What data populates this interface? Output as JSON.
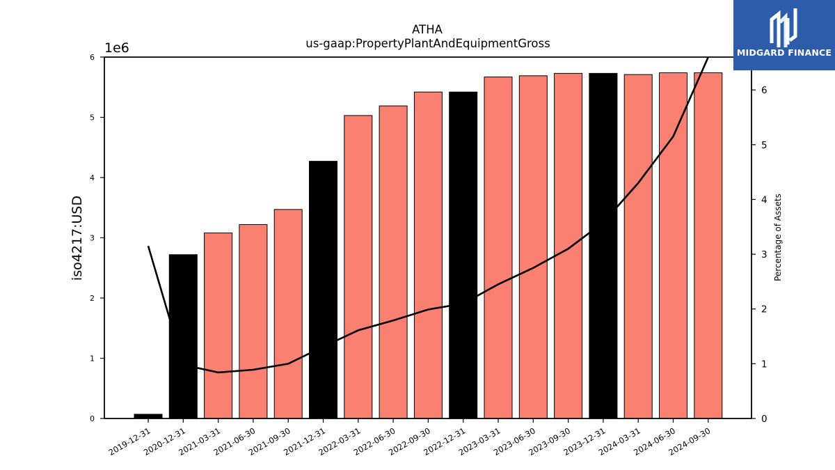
{
  "chart_data": {
    "type": "bar",
    "title": "ATHA",
    "subtitle": "us-gaap:PropertyPlantAndEquipmentGross",
    "ylabel": "iso4217:USD",
    "y_scale_label": "1e6",
    "y2label": "Percentage of Assets",
    "ylim": [
      0,
      6000000
    ],
    "y2lim": [
      0,
      6.6
    ],
    "yticks": [
      "0",
      "1",
      "2",
      "3",
      "4",
      "5",
      "6"
    ],
    "y2ticks": [
      "0",
      "1",
      "2",
      "3",
      "4",
      "5",
      "6"
    ],
    "categories": [
      "2019-12-31",
      "2020-12-31",
      "2021-03-31",
      "2021-06-30",
      "2021-09-30",
      "2021-12-31",
      "2022-03-31",
      "2022-06-30",
      "2022-09-30",
      "2022-12-31",
      "2023-03-31",
      "2023-06-30",
      "2023-09-30",
      "2023-12-31",
      "2024-03-31",
      "2024-06-30",
      "2024-09-30"
    ],
    "series": [
      {
        "kind": "bar",
        "values": [
          70000,
          2720000,
          3080000,
          3220000,
          3470000,
          4270000,
          5030000,
          5190000,
          5420000,
          5420000,
          5670000,
          5690000,
          5730000,
          5730000,
          5710000,
          5740000,
          5740000
        ],
        "annual": [
          true,
          true,
          false,
          false,
          false,
          true,
          false,
          false,
          false,
          true,
          false,
          false,
          false,
          true,
          false,
          false,
          false
        ]
      },
      {
        "kind": "line",
        "axis": "right",
        "values": [
          3.15,
          0.98,
          0.84,
          0.89,
          1.0,
          1.31,
          1.61,
          1.79,
          1.99,
          2.1,
          2.45,
          2.75,
          3.1,
          3.58,
          4.3,
          5.15,
          6.6
        ]
      }
    ],
    "colors": {
      "annual_bar": "#000000",
      "quarter_bar": "#fa8072",
      "line": "#000000"
    }
  },
  "logo": {
    "text": "MIDGARD FINANCE"
  }
}
